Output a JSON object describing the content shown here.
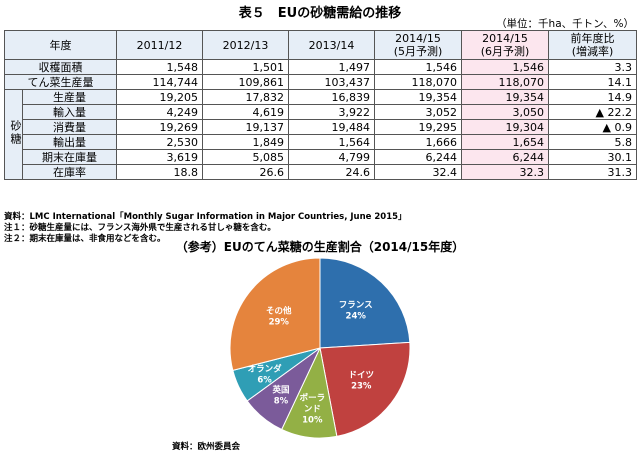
{
  "title": "表５　EUの砂糖需給の推移",
  "unit": "（単位：千ha、千トン、%）",
  "table": {
    "corner": "年度",
    "columns": [
      "2011/12",
      "2012/13",
      "2013/14",
      "2014/15\n(5月予測)",
      "2014/15\n(6月予測)",
      "前年度比\n(増減率)"
    ],
    "group_label": "砂糖",
    "rows": [
      {
        "label": "収穫面積",
        "values": [
          "1,548",
          "1,501",
          "1,497",
          "1,546",
          "1,546",
          "3.3"
        ]
      },
      {
        "label": "てん菜生産量",
        "values": [
          "114,744",
          "109,861",
          "103,437",
          "118,070",
          "118,070",
          "14.1"
        ]
      },
      {
        "label": "生産量",
        "values": [
          "19,205",
          "17,832",
          "16,839",
          "19,354",
          "19,354",
          "14.9"
        ]
      },
      {
        "label": "輸入量",
        "values": [
          "4,249",
          "4,619",
          "3,922",
          "3,052",
          "3,050",
          "▲ 22.2"
        ]
      },
      {
        "label": "消費量",
        "values": [
          "19,269",
          "19,137",
          "19,484",
          "19,295",
          "19,304",
          "▲ 0.9"
        ]
      },
      {
        "label": "輸出量",
        "values": [
          "2,530",
          "1,849",
          "1,564",
          "1,666",
          "1,654",
          "5.8"
        ]
      },
      {
        "label": "期末在庫量",
        "values": [
          "3,619",
          "5,085",
          "4,799",
          "6,244",
          "6,244",
          "30.1"
        ]
      },
      {
        "label": "在庫率",
        "values": [
          "18.8",
          "26.6",
          "24.6",
          "32.4",
          "32.3",
          "31.3"
        ]
      }
    ]
  },
  "notes": [
    "資料：LMC International「Monthly Sugar Information in Major Countries, June 2015」",
    "注１：砂糖生産量には、フランス海外県で生産される甘しゃ糖を含む。",
    "注２：期末在庫量は、非食用などを含む。"
  ],
  "pie_title": "（参考）EUのてん菜糖の生産割合（2014/15年度）",
  "pie_source": "資料：欧州委員会",
  "chart_data": {
    "type": "pie",
    "title": "（参考）EUのてん菜糖の生産割合（2014/15年度）",
    "slices": [
      {
        "label": "フランス",
        "pct_label": "24%",
        "value": 24,
        "color": "#2e6fad"
      },
      {
        "label": "ドイツ",
        "pct_label": "23%",
        "value": 23,
        "color": "#c0413f"
      },
      {
        "label": "ポーランド",
        "pct_label": "10%",
        "value": 10,
        "color": "#93b045"
      },
      {
        "label": "英国",
        "pct_label": "8%",
        "value": 8,
        "color": "#7b5b9a"
      },
      {
        "label": "オランダ",
        "pct_label": "6%",
        "value": 6,
        "color": "#2f9eb5"
      },
      {
        "label": "その他",
        "pct_label": "29%",
        "value": 29,
        "color": "#e5843d"
      }
    ]
  }
}
